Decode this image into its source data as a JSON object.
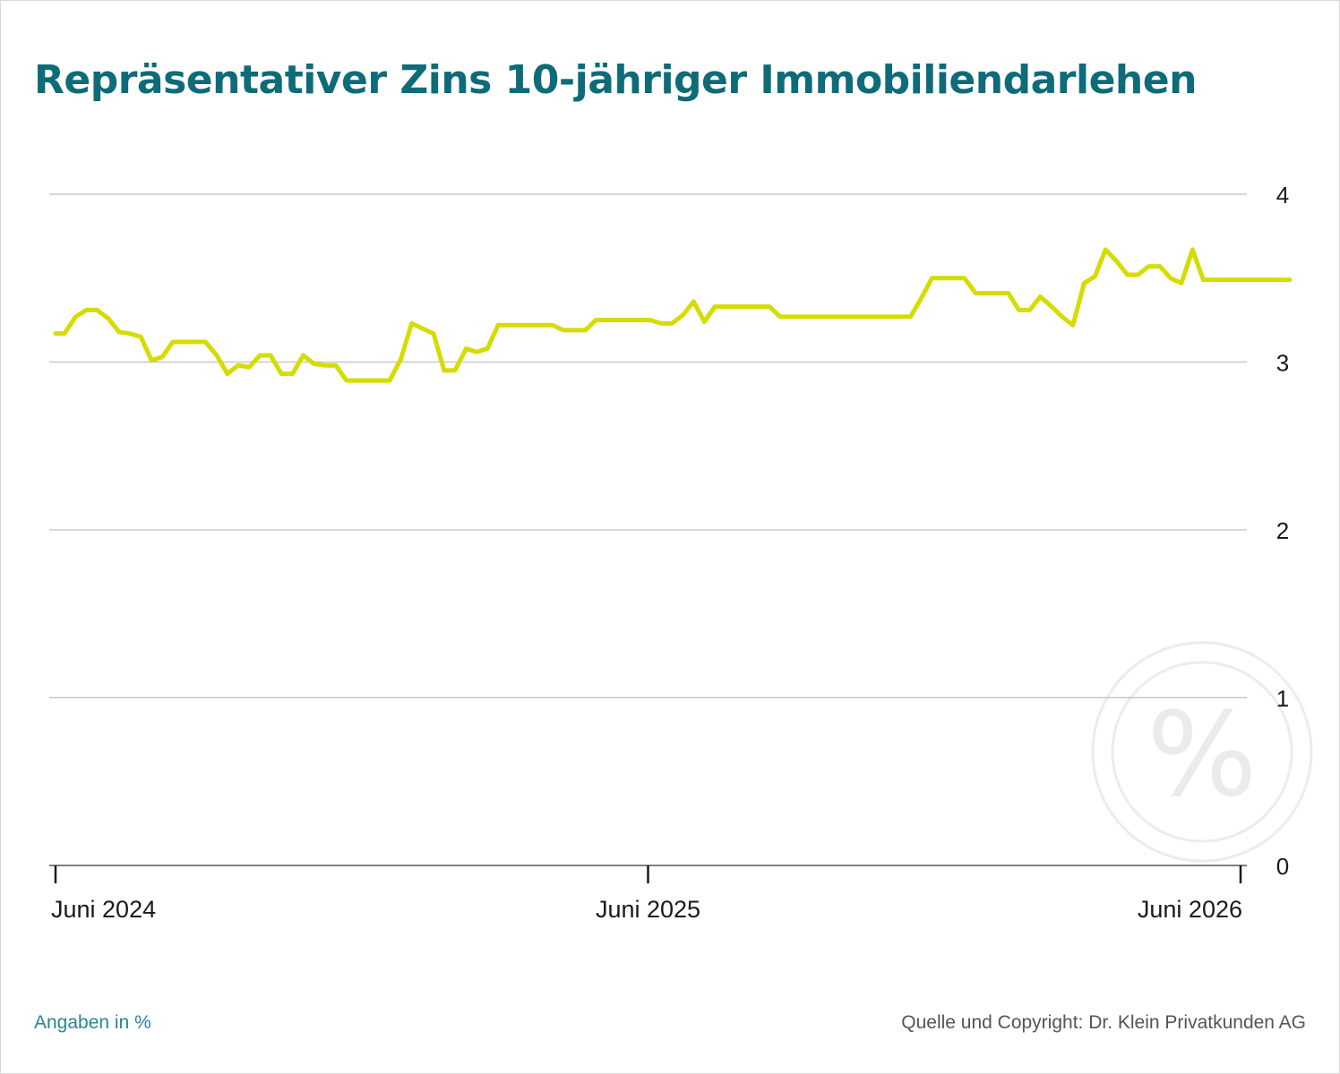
{
  "title": "Repräsentativer Zins 10-jähriger Immobiliendarlehen",
  "footer": {
    "note": "Angaben in %",
    "source": "Quelle und Copyright: Dr. Klein Privatkunden AG"
  },
  "watermark": {
    "icon": "percent-icon",
    "glyph": "%"
  },
  "colors": {
    "title": "#0e6b78",
    "line": "#d4dc00",
    "grid": "#c8c8c8",
    "axis": "#1a1a1a",
    "note": "#2a8493"
  },
  "chart_data": {
    "type": "line",
    "ylim": [
      0,
      4
    ],
    "yticks": [
      "0",
      "1",
      "2",
      "3",
      "4"
    ],
    "ytick_values": [
      0,
      1,
      2,
      3,
      4
    ],
    "xlim": [
      2024.4,
      2026.5
    ],
    "xticks": [
      {
        "label": "Juni 2024",
        "x": 2024.417
      },
      {
        "label": "Juni 2025",
        "x": 2025.417
      },
      {
        "label": "Juni 2026",
        "x": 2026.417
      }
    ],
    "grid": true,
    "series": [
      {
        "x": [
          2024.417,
          2024.432,
          2024.451,
          2024.469,
          2024.487,
          2024.506,
          2024.524,
          2024.542,
          2024.561,
          2024.579,
          2024.597,
          2024.615,
          2024.634,
          2024.652,
          2024.67,
          2024.689,
          2024.707,
          2024.725,
          2024.744,
          2024.762,
          2024.78,
          2024.798,
          2024.817,
          2024.835,
          2024.853,
          2024.872,
          2024.89,
          2024.908,
          2024.927,
          2024.945,
          2024.963,
          2024.981,
          2025.0,
          2025.018,
          2025.036,
          2025.055,
          2025.073,
          2025.091,
          2025.11,
          2025.128,
          2025.146,
          2025.164,
          2025.183,
          2025.201,
          2025.219,
          2025.238,
          2025.256,
          2025.274,
          2025.293,
          2025.311,
          2025.329,
          2025.347,
          2025.366,
          2025.384,
          2025.402,
          2025.421,
          2025.439,
          2025.457,
          2025.476,
          2025.494,
          2025.512,
          2025.53,
          2025.549,
          2025.567,
          2025.585,
          2025.604,
          2025.622,
          2025.64,
          2025.659,
          2025.677,
          2025.695,
          2025.713,
          2025.732,
          2025.75,
          2025.768,
          2025.787,
          2025.805,
          2025.823,
          2025.842,
          2025.86,
          2025.878,
          2025.896,
          2025.915,
          2025.933,
          2025.951,
          2025.97,
          2025.988,
          2026.006,
          2026.025,
          2026.043,
          2026.061,
          2026.079,
          2026.098,
          2026.116,
          2026.134,
          2026.153,
          2026.171,
          2026.189,
          2026.208,
          2026.226,
          2026.244,
          2026.262,
          2026.281,
          2026.299,
          2026.317,
          2026.336,
          2026.354,
          2026.372,
          2026.391,
          2026.409,
          2026.427,
          2026.445,
          2026.464,
          2026.482,
          2026.5
        ],
        "y": [
          3.17,
          3.17,
          3.27,
          3.31,
          3.31,
          3.26,
          3.18,
          3.17,
          3.15,
          3.01,
          3.03,
          3.12,
          3.12,
          3.12,
          3.12,
          3.04,
          2.93,
          2.98,
          2.97,
          3.04,
          3.04,
          2.93,
          2.93,
          3.04,
          2.99,
          2.98,
          2.98,
          2.89,
          2.89,
          2.89,
          2.89,
          2.89,
          3.02,
          3.23,
          3.2,
          3.17,
          2.95,
          2.95,
          3.08,
          3.06,
          3.08,
          3.22,
          3.22,
          3.22,
          3.22,
          3.22,
          3.22,
          3.19,
          3.19,
          3.19,
          3.25,
          3.25,
          3.25,
          3.25,
          3.25,
          3.25,
          3.23,
          3.23,
          3.28,
          3.36,
          3.24,
          3.33,
          3.33,
          3.33,
          3.33,
          3.33,
          3.33,
          3.27,
          3.27,
          3.27,
          3.27,
          3.27,
          3.27,
          3.27,
          3.27,
          3.27,
          3.27,
          3.27,
          3.27,
          3.27,
          3.38,
          3.5,
          3.5,
          3.5,
          3.5,
          3.41,
          3.41,
          3.41,
          3.41,
          3.31,
          3.31,
          3.39,
          3.33,
          3.27,
          3.22,
          3.47,
          3.51,
          3.67,
          3.6,
          3.52,
          3.52,
          3.57,
          3.57,
          3.5,
          3.47,
          3.67,
          3.49,
          3.49,
          3.49,
          3.49,
          3.49,
          3.49,
          3.49,
          3.49,
          3.49
        ]
      }
    ]
  }
}
